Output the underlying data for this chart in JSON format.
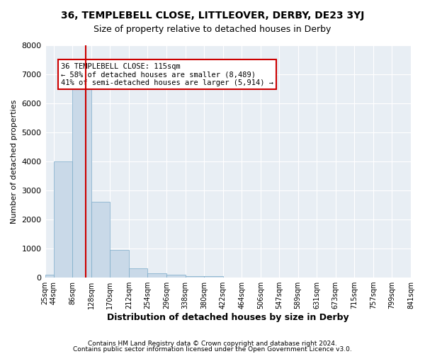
{
  "title1": "36, TEMPLEBELL CLOSE, LITTLEOVER, DERBY, DE23 3YJ",
  "title2": "Size of property relative to detached houses in Derby",
  "xlabel": "Distribution of detached houses by size in Derby",
  "ylabel": "Number of detached properties",
  "footer1": "Contains HM Land Registry data © Crown copyright and database right 2024.",
  "footer2": "Contains public sector information licensed under the Open Government Licence v3.0.",
  "bar_color": "#c9d9e8",
  "bar_edge_color": "#7aaac8",
  "background_color": "#e8eef4",
  "grid_color": "#ffffff",
  "annotation_text": "36 TEMPLEBELL CLOSE: 115sqm\n← 58% of detached houses are smaller (8,489)\n41% of semi-detached houses are larger (5,914) →",
  "vline_x": 115,
  "vline_color": "#cc0000",
  "bin_edges": [
    25,
    44,
    86,
    128,
    170,
    212,
    254,
    296,
    338,
    380,
    422,
    464,
    506,
    547,
    589,
    631,
    673,
    715,
    757,
    799,
    841
  ],
  "bin_labels": [
    "25sqm",
    "44sqm",
    "86sqm",
    "128sqm",
    "170sqm",
    "212sqm",
    "254sqm",
    "296sqm",
    "338sqm",
    "380sqm",
    "422sqm",
    "464sqm",
    "506sqm",
    "547sqm",
    "589sqm",
    "631sqm",
    "673sqm",
    "715sqm",
    "757sqm",
    "799sqm",
    "841sqm"
  ],
  "bar_heights": [
    100,
    4000,
    6600,
    2600,
    950,
    320,
    140,
    90,
    60,
    40,
    0,
    0,
    0,
    0,
    0,
    0,
    0,
    0,
    0,
    0
  ],
  "ylim": [
    0,
    8000
  ],
  "yticks": [
    0,
    1000,
    2000,
    3000,
    4000,
    5000,
    6000,
    7000,
    8000
  ]
}
